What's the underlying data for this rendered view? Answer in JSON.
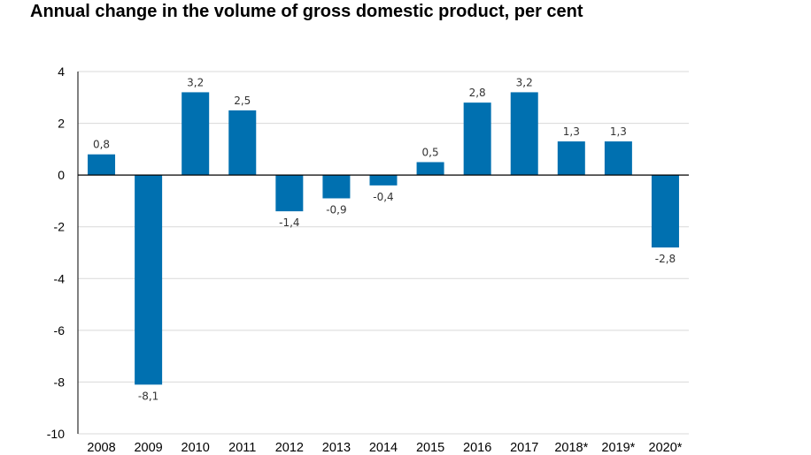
{
  "chart_data": {
    "type": "bar",
    "title": "Annual change in the volume of gross domestic product, per cent",
    "xlabel": "",
    "ylabel": "",
    "categories": [
      "2008",
      "2009",
      "2010",
      "2011",
      "2012",
      "2013",
      "2014",
      "2015",
      "2016",
      "2017",
      "2018*",
      "2019*",
      "2020*"
    ],
    "values": [
      0.8,
      -8.1,
      3.2,
      2.5,
      -1.4,
      -0.9,
      -0.4,
      0.5,
      2.8,
      3.2,
      1.3,
      1.3,
      -2.8
    ],
    "data_labels": [
      "0,8",
      "-8,1",
      "3,2",
      "2,5",
      "-1,4",
      "-0,9",
      "-0,4",
      "0,5",
      "2,8",
      "3,2",
      "1,3",
      "1,3",
      "-2,8"
    ],
    "ylim": [
      -10,
      4
    ],
    "yticks": [
      4,
      2,
      0,
      -2,
      -4,
      -6,
      -8,
      -10
    ],
    "grid": true,
    "legend": "none",
    "colors": {
      "bar": "#0070b0",
      "grid": "#d9d9d9",
      "axis": "#000000"
    }
  }
}
